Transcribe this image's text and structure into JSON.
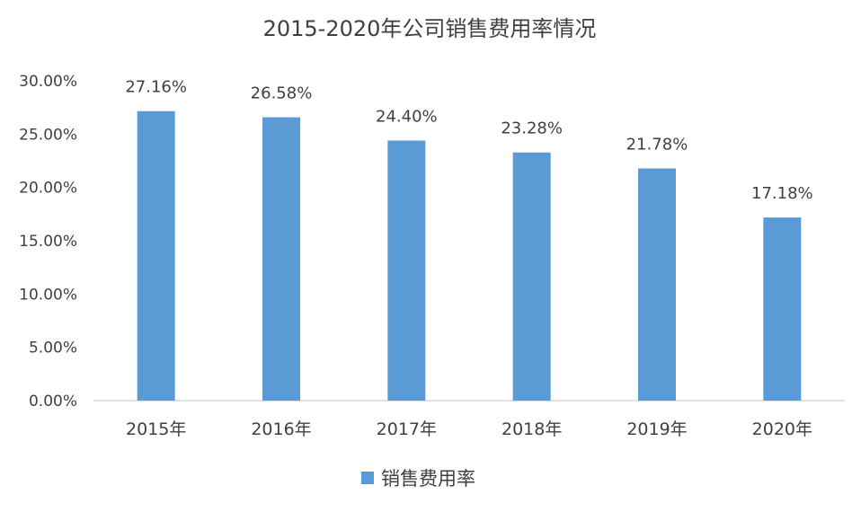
{
  "chart_data": {
    "type": "bar",
    "title": "2015-2020年公司销售费用率情况",
    "categories": [
      "2015年",
      "2016年",
      "2017年",
      "2018年",
      "2019年",
      "2020年"
    ],
    "series": [
      {
        "name": "销售费用率",
        "values": [
          27.16,
          26.58,
          24.4,
          23.28,
          21.78,
          17.18
        ],
        "data_labels": [
          "27.16%",
          "26.58%",
          "24.40%",
          "23.28%",
          "21.78%",
          "17.18%"
        ]
      }
    ],
    "yticks": [
      "0.00%",
      "5.00%",
      "10.00%",
      "15.00%",
      "20.00%",
      "25.00%",
      "30.00%"
    ],
    "ylim": [
      0,
      30
    ],
    "grid": false,
    "legend_position": "bottom",
    "colors": {
      "bar": "#5b9bd5",
      "axis": "#d9d9d9",
      "text": "#404040"
    }
  }
}
